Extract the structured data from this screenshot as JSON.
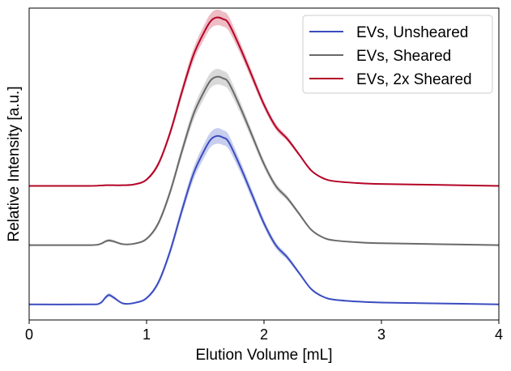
{
  "chart_data": {
    "type": "line",
    "title": "",
    "xlabel": "Elution Volume [mL]",
    "ylabel": "Relative Intensity [a.u.]",
    "xlim": [
      0,
      4
    ],
    "ylim": [
      0,
      100
    ],
    "xticks": [
      "0",
      "1",
      "2",
      "3",
      "4"
    ],
    "yticks_shown": false,
    "grid": false,
    "legend_placement": "top-right",
    "x": [
      0.0,
      0.5,
      0.6,
      0.65,
      0.68,
      0.72,
      0.8,
      0.9,
      1.0,
      1.1,
      1.2,
      1.3,
      1.4,
      1.5,
      1.55,
      1.6,
      1.65,
      1.7,
      1.8,
      1.9,
      2.0,
      2.1,
      2.2,
      2.3,
      2.4,
      2.5,
      2.6,
      2.8,
      3.0,
      3.5,
      4.0
    ],
    "series": [
      {
        "name": "EVs, Unsheared",
        "color": "#3b4cc0",
        "band_color": "#b5bde8",
        "offset": 0,
        "values": [
          0,
          0,
          0.3,
          2.2,
          3,
          2.2,
          0.3,
          0.5,
          2,
          7,
          17,
          30,
          42,
          50,
          53,
          54,
          53.5,
          52,
          44,
          35,
          26,
          19,
          15,
          10,
          5,
          2.5,
          1.5,
          0.9,
          0.6,
          0.3,
          0
        ],
        "band": [
          0,
          0,
          0.2,
          0.5,
          0.6,
          0.5,
          0.2,
          0.2,
          0.4,
          0.8,
          1.2,
          1.6,
          2,
          2.3,
          2.4,
          2.5,
          2.4,
          2.3,
          1.8,
          1.5,
          1.2,
          1,
          0.8,
          0.5,
          0.3,
          0.2,
          0.1,
          0.1,
          0.1,
          0.05,
          0
        ]
      },
      {
        "name": "EVs, Sheared",
        "color": "#696969",
        "band_color": "#cccccc",
        "offset": 19,
        "values": [
          0,
          0,
          0.3,
          1.2,
          1.5,
          1.2,
          0.3,
          0.5,
          2,
          7,
          17,
          30,
          42,
          50,
          53,
          54,
          53.5,
          52,
          44,
          35,
          26,
          19,
          15,
          10,
          5,
          2.5,
          1.5,
          0.9,
          0.6,
          0.3,
          0
        ],
        "band": [
          0,
          0,
          0.2,
          0.4,
          0.5,
          0.4,
          0.2,
          0.2,
          0.4,
          0.8,
          1.2,
          1.6,
          2,
          2.3,
          2.4,
          2.5,
          2.4,
          2.3,
          1.8,
          1.5,
          1.2,
          1,
          0.8,
          0.5,
          0.3,
          0.2,
          0.1,
          0.1,
          0.1,
          0.05,
          0
        ]
      },
      {
        "name": "EVs, 2x Sheared",
        "color": "#b40426",
        "band_color": "#e8a6b2",
        "offset": 38,
        "values": [
          0,
          0,
          0.1,
          0.2,
          0.2,
          0.2,
          0.2,
          0.5,
          2,
          7,
          17,
          30,
          42,
          50,
          53,
          54,
          53.5,
          52,
          44,
          35,
          26,
          19,
          15,
          10,
          5,
          2.5,
          1.5,
          0.9,
          0.6,
          0.3,
          0
        ],
        "band": [
          0,
          0,
          0.1,
          0.1,
          0.1,
          0.1,
          0.1,
          0.2,
          0.4,
          0.8,
          1.2,
          1.6,
          2,
          2.3,
          2.4,
          2.5,
          2.4,
          2.3,
          1.8,
          1.5,
          1.2,
          1,
          0.8,
          0.5,
          0.3,
          0.2,
          0.1,
          0.1,
          0.1,
          0.05,
          0
        ]
      }
    ]
  }
}
